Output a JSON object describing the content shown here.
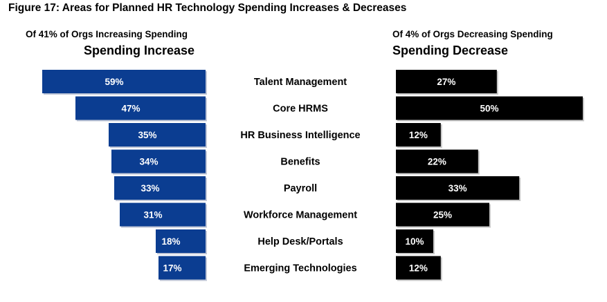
{
  "figure_title": "Figure 17: Areas for Planned HR Technology Spending Increases & Decreases",
  "increase_panel": {
    "subtitle": "Of 41% of Orgs Increasing Spending",
    "heading": "Spending Increase"
  },
  "decrease_panel": {
    "subtitle": "Of 4% of Orgs Decreasing Spending",
    "heading": "Spending Decrease"
  },
  "chart_data": {
    "type": "bar",
    "title": "Figure 17: Areas for Planned HR Technology Spending Increases & Decreases",
    "categories": [
      "Talent Management",
      "Core HRMS",
      "HR Business Intelligence",
      "Benefits",
      "Payroll",
      "Workforce Management",
      "Help Desk/Portals",
      "Emerging Technologies"
    ],
    "series": [
      {
        "name": "Spending Increase",
        "values": [
          59,
          47,
          35,
          34,
          33,
          31,
          18,
          17
        ],
        "labels": [
          "59%",
          "47%",
          "35%",
          "34%",
          "33%",
          "31%",
          "18%",
          "17%"
        ],
        "color": "#0b3d91"
      },
      {
        "name": "Spending Decrease",
        "values": [
          27,
          50,
          12,
          22,
          33,
          25,
          10,
          12
        ],
        "labels": [
          "27%",
          "50%",
          "12%",
          "22%",
          "33%",
          "25%",
          "10%",
          "12%"
        ],
        "color": "#000000"
      }
    ],
    "orientation": "horizontal",
    "increase_direction": "right-to-left",
    "decrease_direction": "left-to-right",
    "grid": false,
    "legend": "none"
  }
}
